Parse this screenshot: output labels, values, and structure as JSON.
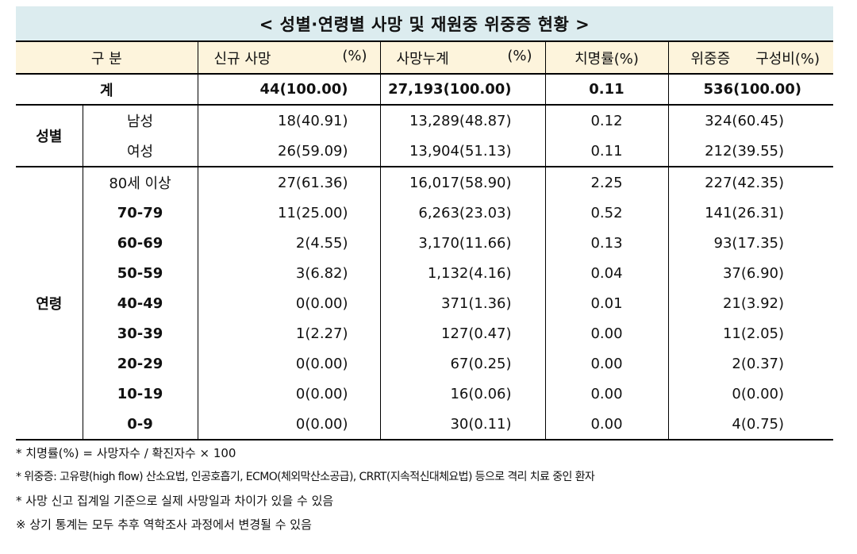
{
  "title": "< 성별·연령별 사망 및 재원중 위중증 현황 >",
  "header": {
    "category": "구 분",
    "new_deaths": "신규 사망",
    "new_deaths_pct": "(%)",
    "cum_deaths": "사망누계",
    "cum_deaths_pct": "(%)",
    "fatality": "치명률(%)",
    "severe": "위중증",
    "severe_ratio": "구성비(%)"
  },
  "total": {
    "label": "계",
    "new_deaths": "44(100.00)",
    "cum_deaths": "27,193(100.00)",
    "fatality": "0.11",
    "severe": "536(100.00)"
  },
  "sex_group": "성별",
  "sex_rows": [
    {
      "label": "남성",
      "new_deaths": "18(40.91)",
      "cum_deaths": "13,289(48.87)",
      "fatality": "0.12",
      "severe": "324(60.45)"
    },
    {
      "label": "여성",
      "new_deaths": "26(59.09)",
      "cum_deaths": "13,904(51.13)",
      "fatality": "0.11",
      "severe": "212(39.55)"
    }
  ],
  "age_group": "연령",
  "age_rows": [
    {
      "label": "80세 이상",
      "new_deaths": "27(61.36)",
      "cum_deaths": "16,017(58.90)",
      "fatality": "2.25",
      "severe": "227(42.35)"
    },
    {
      "label": "70-79",
      "new_deaths": "11(25.00)",
      "cum_deaths": "6,263(23.03)",
      "fatality": "0.52",
      "severe": "141(26.31)"
    },
    {
      "label": "60-69",
      "new_deaths": "2(4.55)",
      "cum_deaths": "3,170(11.66)",
      "fatality": "0.13",
      "severe": "93(17.35)"
    },
    {
      "label": "50-59",
      "new_deaths": "3(6.82)",
      "cum_deaths": "1,132(4.16)",
      "fatality": "0.04",
      "severe": "37(6.90)"
    },
    {
      "label": "40-49",
      "new_deaths": "0(0.00)",
      "cum_deaths": "371(1.36)",
      "fatality": "0.01",
      "severe": "21(3.92)"
    },
    {
      "label": "30-39",
      "new_deaths": "1(2.27)",
      "cum_deaths": "127(0.47)",
      "fatality": "0.00",
      "severe": "11(2.05)"
    },
    {
      "label": "20-29",
      "new_deaths": "0(0.00)",
      "cum_deaths": "67(0.25)",
      "fatality": "0.00",
      "severe": "2(0.37)"
    },
    {
      "label": "10-19",
      "new_deaths": "0(0.00)",
      "cum_deaths": "16(0.06)",
      "fatality": "0.00",
      "severe": "0(0.00)"
    },
    {
      "label": "0-9",
      "new_deaths": "0(0.00)",
      "cum_deaths": "30(0.11)",
      "fatality": "0.00",
      "severe": "4(0.75)"
    }
  ],
  "notes": [
    "* 치명률(%) = 사망자수 / 확진자수 × 100",
    "* 위중증: 고유량(high flow) 산소요법, 인공호흡기, ECMO(체외막산소공급), CRRT(지속적신대체요법) 등으로 격리 치료 중인 환자",
    "* 사망 신고 집계일 기준으로 실제 사망일과 차이가 있을 수 있음",
    "※ 상기 통계는 모두 추후 역학조사 과정에서 변경될 수 있음"
  ],
  "colors": {
    "title_bg": "#dcecef",
    "header_bg": "#fdf4dc",
    "rule": "#000000"
  }
}
